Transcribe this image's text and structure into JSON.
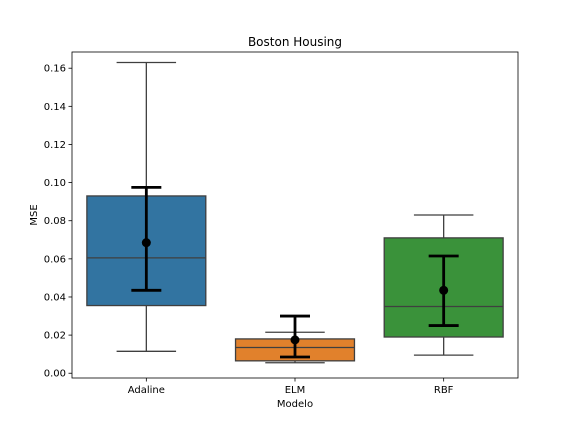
{
  "chart_data": {
    "type": "box",
    "title": "Boston Housing",
    "xlabel": "Modelo",
    "ylabel": "MSE",
    "ylim": [
      -0.0025,
      0.1685
    ],
    "yticks": [
      0.0,
      0.02,
      0.04,
      0.06,
      0.08,
      0.1,
      0.12,
      0.14,
      0.16
    ],
    "ytick_labels": [
      "0.00",
      "0.02",
      "0.04",
      "0.06",
      "0.08",
      "0.10",
      "0.12",
      "0.14",
      "0.16"
    ],
    "categories": [
      "Adaline",
      "ELM",
      "RBF"
    ],
    "grid": false,
    "boxes": [
      {
        "name": "Adaline",
        "color": "#3274a1",
        "whisker_low": 0.0115,
        "q1": 0.0355,
        "median": 0.0605,
        "q3": 0.093,
        "whisker_high": 0.163,
        "mean": 0.0685,
        "ci_low": 0.0435,
        "ci_high": 0.0975
      },
      {
        "name": "ELM",
        "color": "#e1812c",
        "whisker_low": 0.0055,
        "q1": 0.0065,
        "median": 0.0135,
        "q3": 0.018,
        "whisker_high": 0.0215,
        "mean": 0.0175,
        "ci_low": 0.0085,
        "ci_high": 0.03
      },
      {
        "name": "RBF",
        "color": "#3a923a",
        "whisker_low": 0.0095,
        "q1": 0.019,
        "median": 0.035,
        "q3": 0.071,
        "whisker_high": 0.083,
        "mean": 0.0435,
        "ci_low": 0.025,
        "ci_high": 0.0615
      }
    ]
  }
}
